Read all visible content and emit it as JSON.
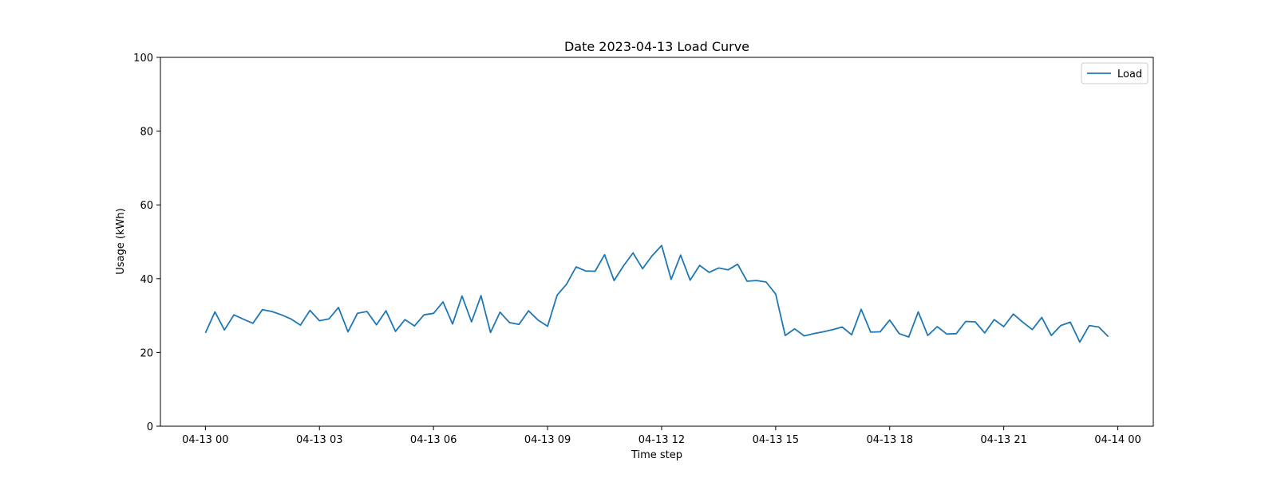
{
  "chart_data": {
    "type": "line",
    "title": "Date 2023-04-13 Load Curve",
    "xlabel": "Time step",
    "ylabel": "Usage (kWh)",
    "ylim": [
      0,
      100
    ],
    "yticks": [
      "0",
      "20",
      "40",
      "60",
      "80",
      "100"
    ],
    "xticks": [
      "04-13 00",
      "04-13 03",
      "04-13 06",
      "04-13 09",
      "04-13 12",
      "04-13 15",
      "04-13 18",
      "04-13 21",
      "04-14 00"
    ],
    "xlim": [
      "2023-04-12 22:49",
      "2023-04-14 00:56"
    ],
    "legend_position": "top-right",
    "grid": false,
    "series": [
      {
        "name": "Load",
        "color": "#1f77b4",
        "x": [
          "2023-04-13 00:00",
          "2023-04-13 00:15",
          "2023-04-13 00:30",
          "2023-04-13 00:45",
          "2023-04-13 01:00",
          "2023-04-13 01:15",
          "2023-04-13 01:30",
          "2023-04-13 01:45",
          "2023-04-13 02:00",
          "2023-04-13 02:15",
          "2023-04-13 02:30",
          "2023-04-13 02:45",
          "2023-04-13 03:00",
          "2023-04-13 03:15",
          "2023-04-13 03:30",
          "2023-04-13 03:45",
          "2023-04-13 04:00",
          "2023-04-13 04:15",
          "2023-04-13 04:30",
          "2023-04-13 04:45",
          "2023-04-13 05:00",
          "2023-04-13 05:15",
          "2023-04-13 05:30",
          "2023-04-13 05:45",
          "2023-04-13 06:00",
          "2023-04-13 06:15",
          "2023-04-13 06:30",
          "2023-04-13 06:45",
          "2023-04-13 07:00",
          "2023-04-13 07:15",
          "2023-04-13 07:30",
          "2023-04-13 07:45",
          "2023-04-13 08:00",
          "2023-04-13 08:15",
          "2023-04-13 08:30",
          "2023-04-13 08:45",
          "2023-04-13 09:00",
          "2023-04-13 09:15",
          "2023-04-13 09:30",
          "2023-04-13 09:45",
          "2023-04-13 10:00",
          "2023-04-13 10:15",
          "2023-04-13 10:30",
          "2023-04-13 10:45",
          "2023-04-13 11:00",
          "2023-04-13 11:15",
          "2023-04-13 11:30",
          "2023-04-13 11:45",
          "2023-04-13 12:00",
          "2023-04-13 12:15",
          "2023-04-13 12:30",
          "2023-04-13 12:45",
          "2023-04-13 13:00",
          "2023-04-13 13:15",
          "2023-04-13 13:30",
          "2023-04-13 13:45",
          "2023-04-13 14:00",
          "2023-04-13 14:15",
          "2023-04-13 14:30",
          "2023-04-13 14:45",
          "2023-04-13 15:00",
          "2023-04-13 15:15",
          "2023-04-13 15:30",
          "2023-04-13 15:45",
          "2023-04-13 16:00",
          "2023-04-13 16:15",
          "2023-04-13 16:30",
          "2023-04-13 16:45",
          "2023-04-13 17:00",
          "2023-04-13 17:15",
          "2023-04-13 17:30",
          "2023-04-13 17:45",
          "2023-04-13 18:00",
          "2023-04-13 18:15",
          "2023-04-13 18:30",
          "2023-04-13 18:45",
          "2023-04-13 19:00",
          "2023-04-13 19:15",
          "2023-04-13 19:30",
          "2023-04-13 19:45",
          "2023-04-13 20:00",
          "2023-04-13 20:15",
          "2023-04-13 20:30",
          "2023-04-13 20:45",
          "2023-04-13 21:00",
          "2023-04-13 21:15",
          "2023-04-13 21:30",
          "2023-04-13 21:45",
          "2023-04-13 22:00",
          "2023-04-13 22:15",
          "2023-04-13 22:30",
          "2023-04-13 22:45",
          "2023-04-13 23:00",
          "2023-04-13 23:15",
          "2023-04-13 23:30",
          "2023-04-13 23:45"
        ],
        "values": [
          25.3,
          31.0,
          26.1,
          30.2,
          29.0,
          27.9,
          31.6,
          31.1,
          30.2,
          29.1,
          27.4,
          31.4,
          28.6,
          29.1,
          32.2,
          25.6,
          30.6,
          31.1,
          27.5,
          31.3,
          25.7,
          28.9,
          27.2,
          30.2,
          30.6,
          33.7,
          27.7,
          35.3,
          28.3,
          35.4,
          25.4,
          30.9,
          28.1,
          27.6,
          31.3,
          28.8,
          27.1,
          35.5,
          38.5,
          43.2,
          42.1,
          42.0,
          46.5,
          39.5,
          43.5,
          47.0,
          42.7,
          46.2,
          49.0,
          39.8,
          46.4,
          39.6,
          43.6,
          41.7,
          42.9,
          42.4,
          43.9,
          39.3,
          39.5,
          39.1,
          35.8,
          24.6,
          26.4,
          24.5,
          25.1,
          25.6,
          26.2,
          26.9,
          24.8,
          31.7,
          25.5,
          25.6,
          28.8,
          25.1,
          24.2,
          31.0,
          24.6,
          27.0,
          25.0,
          25.1,
          28.4,
          28.3,
          25.3,
          28.9,
          27.0,
          30.4,
          28.2,
          26.2,
          29.5,
          24.6,
          27.3,
          28.2,
          22.8,
          27.3,
          26.9,
          24.3
        ]
      }
    ]
  }
}
